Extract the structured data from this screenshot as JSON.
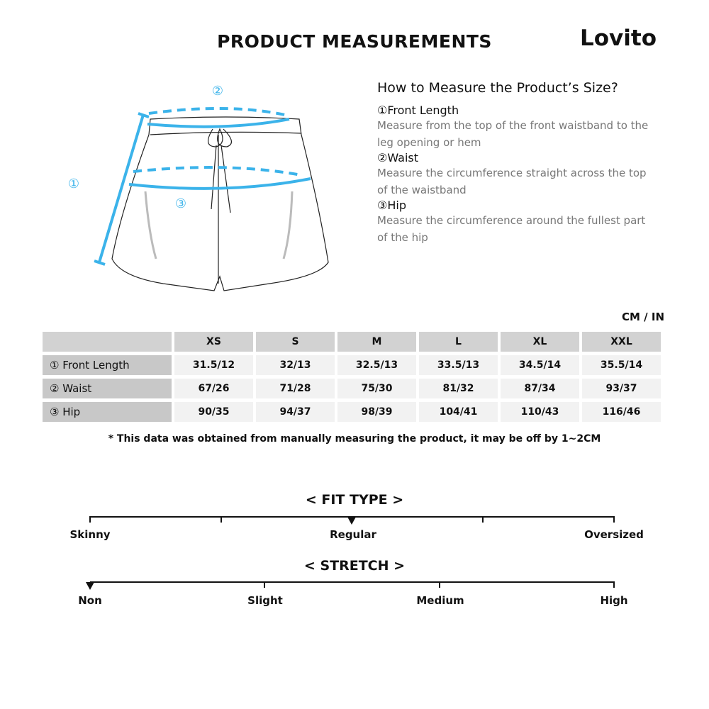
{
  "title": "PRODUCT MEASUREMENTS",
  "logo": "Lovito",
  "diagram": {
    "markers": [
      "①",
      "②",
      "③"
    ],
    "accent": "#3bb3ea"
  },
  "howto": {
    "title": "How to Measure the Product’s Size?",
    "items": [
      {
        "head": "①Front Length",
        "desc": "Measure from the top of the front waistband to the leg opening or hem"
      },
      {
        "head": "②Waist",
        "desc": "Measure the circumference straight across the top of the waistband"
      },
      {
        "head": "③Hip",
        "desc": "Measure the circumference around the fullest part of the hip"
      }
    ]
  },
  "unit": "CM / IN",
  "table": {
    "sizes": [
      "XS",
      "S",
      "M",
      "L",
      "XL",
      "XXL"
    ],
    "rows": [
      {
        "label": "① Front Length",
        "values": [
          "31.5/12",
          "32/13",
          "32.5/13",
          "33.5/13",
          "34.5/14",
          "35.5/14"
        ]
      },
      {
        "label": "② Waist",
        "values": [
          "67/26",
          "71/28",
          "75/30",
          "81/32",
          "87/34",
          "93/37"
        ]
      },
      {
        "label": "③ Hip",
        "values": [
          "90/35",
          "94/37",
          "98/39",
          "104/41",
          "110/43",
          "116/46"
        ]
      }
    ]
  },
  "note": "* This data was obtained from manually measuring the product, it may be off by 1~2CM",
  "fit": {
    "title": "< FIT TYPE >",
    "labels": [
      "Skinny",
      "Regular",
      "Oversized"
    ],
    "selected": "Regular"
  },
  "stretch": {
    "title": "< STRETCH >",
    "labels": [
      "Non",
      "Slight",
      "Medium",
      "High"
    ],
    "selected": "Non"
  }
}
